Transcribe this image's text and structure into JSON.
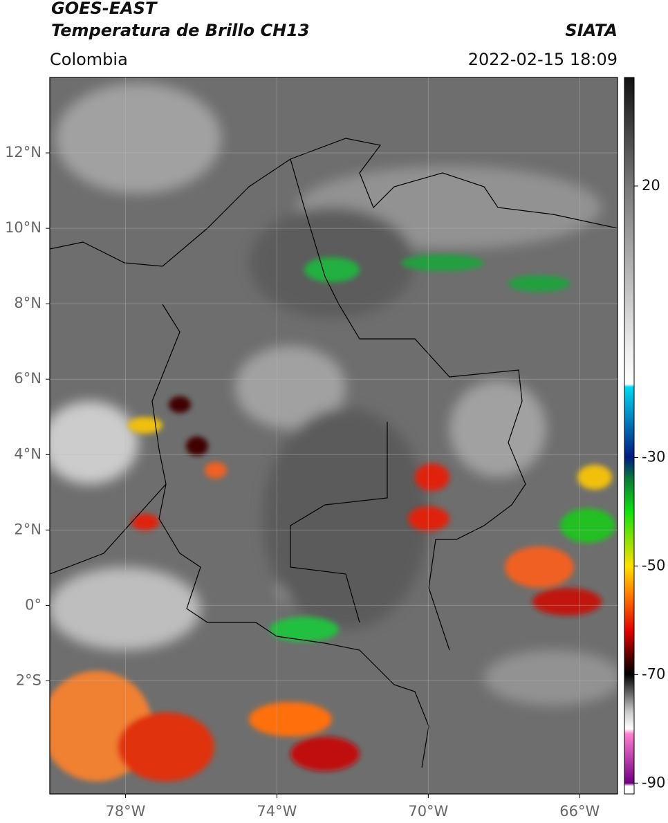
{
  "header": {
    "title_line1": "GOES-EAST",
    "title_line2": "Temperatura de Brillo CH13",
    "agency": "SIATA",
    "region": "Colombia",
    "timestamp": "2022-02-15 18:09"
  },
  "map": {
    "xlim": [
      -80,
      -65
    ],
    "ylim": [
      -5,
      14
    ],
    "xticks": [
      {
        "value": -78,
        "label": "78°W"
      },
      {
        "value": -74,
        "label": "74°W"
      },
      {
        "value": -70,
        "label": "70°W"
      },
      {
        "value": -66,
        "label": "66°W"
      }
    ],
    "yticks": [
      {
        "value": 12,
        "label": "12°N"
      },
      {
        "value": 10,
        "label": "10°N"
      },
      {
        "value": 8,
        "label": "8°N"
      },
      {
        "value": 6,
        "label": "6°N"
      },
      {
        "value": 4,
        "label": "4°N"
      },
      {
        "value": 2,
        "label": "2°N"
      },
      {
        "value": 0,
        "label": "0°"
      },
      {
        "value": -2,
        "label": "2°S"
      }
    ],
    "grid": true
  },
  "colorbar": {
    "lim": [
      -92,
      40
    ],
    "ticks": [
      20,
      -30,
      -50,
      -70,
      -90
    ]
  }
}
